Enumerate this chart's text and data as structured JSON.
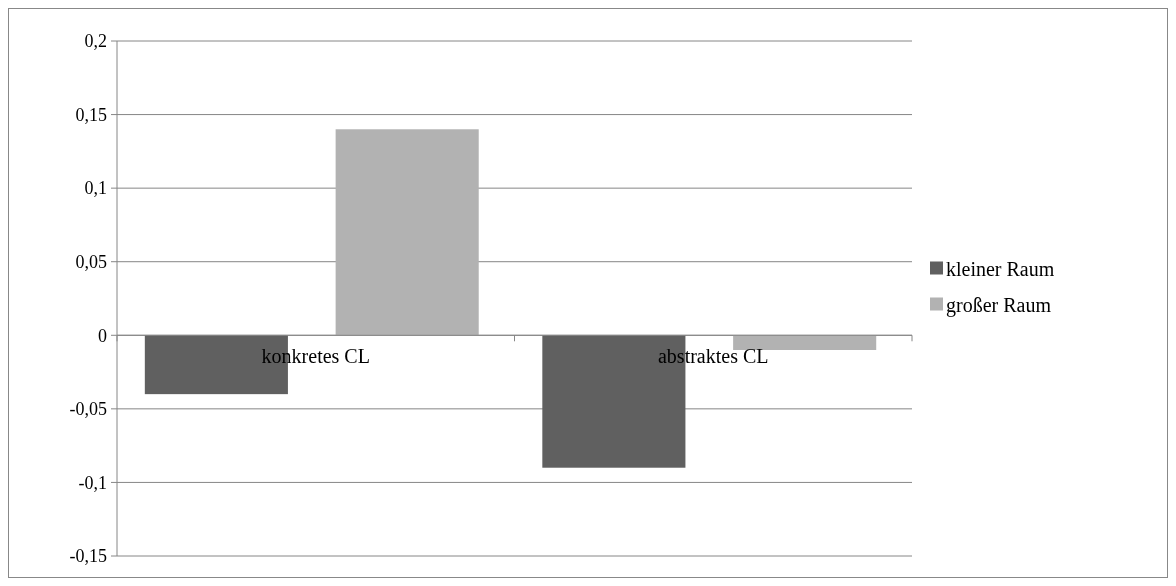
{
  "chart_data": {
    "type": "bar",
    "categories": [
      "konkretes CL",
      "abstraktes CL"
    ],
    "series": [
      {
        "name": "kleiner Raum",
        "color": "#606060",
        "values": [
          -0.04,
          -0.09
        ]
      },
      {
        "name": "großer Raum",
        "color": "#b2b2b2",
        "values": [
          0.14,
          -0.01
        ]
      }
    ],
    "ylim": [
      -0.15,
      0.2
    ],
    "yticks": [
      {
        "value": -0.15,
        "label": "-0,15"
      },
      {
        "value": -0.1,
        "label": "-0,1"
      },
      {
        "value": -0.05,
        "label": "-0,05"
      },
      {
        "value": 0,
        "label": "0"
      },
      {
        "value": 0.05,
        "label": "0,05"
      },
      {
        "value": 0.1,
        "label": "0,1"
      },
      {
        "value": 0.15,
        "label": "0,15"
      },
      {
        "value": 0.2,
        "label": "0,2"
      }
    ],
    "grid": "y",
    "legend": "right"
  }
}
